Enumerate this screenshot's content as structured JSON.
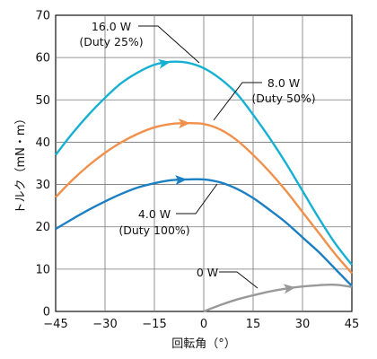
{
  "chart_data": {
    "type": "line",
    "title": "",
    "xlabel": "回転角（°）",
    "ylabel": "トルク（mN・m）",
    "xlim": [
      -45,
      45
    ],
    "ylim": [
      0,
      70
    ],
    "xticks": [
      -45,
      -30,
      -15,
      0,
      15,
      30,
      45
    ],
    "xtick_labels": [
      "−45",
      "−30",
      "−15",
      "0",
      "15",
      "30",
      "45"
    ],
    "yticks": [
      0,
      10,
      20,
      30,
      40,
      50,
      60,
      70
    ],
    "ytick_labels": [
      "0",
      "10",
      "20",
      "30",
      "40",
      "50",
      "60",
      "70"
    ],
    "grid": true,
    "series": [
      {
        "name": "16.0 W (Duty 25%)",
        "color": "#16b1d2",
        "x": [
          -45,
          -40,
          -35,
          -30,
          -25,
          -20,
          -15,
          -10,
          -5,
          0,
          5,
          10,
          15,
          20,
          25,
          30,
          35,
          40,
          45
        ],
        "y": [
          37,
          42,
          46.5,
          50.5,
          54,
          56.5,
          58.3,
          59,
          58.8,
          57.5,
          55,
          51.5,
          46.5,
          41,
          35,
          28.5,
          22,
          16,
          11
        ]
      },
      {
        "name": "8.0 W (Duty 50%)",
        "color": "#f0904a",
        "x": [
          -45,
          -40,
          -35,
          -30,
          -25,
          -20,
          -15,
          -10,
          -5,
          0,
          5,
          10,
          15,
          20,
          25,
          30,
          35,
          40,
          45
        ],
        "y": [
          27,
          31,
          34.5,
          37.5,
          40,
          42,
          43.5,
          44.3,
          44.5,
          44.3,
          43,
          40.5,
          37,
          33,
          28.5,
          23.5,
          18.5,
          13.5,
          9
        ]
      },
      {
        "name": "4.0 W (Duty 100%)",
        "color": "#1b7fc4",
        "x": [
          -45,
          -40,
          -35,
          -30,
          -25,
          -20,
          -15,
          -10,
          -5,
          0,
          5,
          10,
          15,
          20,
          25,
          30,
          35,
          40,
          45
        ],
        "y": [
          19.5,
          21.8,
          24,
          26,
          27.8,
          29.3,
          30.3,
          31,
          31.2,
          31.2,
          30.5,
          29,
          26.8,
          24,
          21,
          17.5,
          14,
          10,
          6
        ]
      },
      {
        "name": "0 W",
        "color": "#999999",
        "x": [
          0,
          5,
          10,
          15,
          20,
          25,
          30,
          35,
          40,
          45
        ],
        "y": [
          0,
          1.5,
          2.8,
          3.8,
          4.7,
          5.4,
          5.9,
          6.2,
          6.3,
          5.8
        ]
      }
    ],
    "annotations": [
      {
        "lines": [
          "16.0 W",
          "(Duty 25%)"
        ]
      },
      {
        "lines": [
          "8.0 W",
          "(Duty 50%)"
        ]
      },
      {
        "lines": [
          "4.0 W",
          "(Duty 100%)"
        ]
      },
      {
        "lines": [
          "0 W"
        ]
      }
    ]
  }
}
